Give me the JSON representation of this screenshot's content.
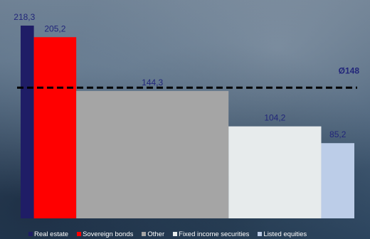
{
  "chart_data": {
    "type": "bar",
    "categories": [
      "Real estate",
      "Sovereign bonds",
      "Other",
      "Fixed income securities",
      "Listed equities"
    ],
    "values": [
      218.3,
      205.2,
      144.3,
      104.2,
      85.2
    ],
    "value_labels": [
      "218,3",
      "205,2",
      "144,3",
      "104,2",
      "85,2"
    ],
    "colors": [
      "#1f1d66",
      "#ff0000",
      "#a5a5a5",
      "#e7ebec",
      "#bccde8"
    ],
    "relative_widths": [
      1,
      3.2,
      11.5,
      7,
      2.5
    ],
    "average": {
      "value": 148,
      "label": "Ø148"
    },
    "ylim": [
      0,
      230
    ],
    "title": "",
    "xlabel": "",
    "ylabel": "",
    "grid": false,
    "legend": "bottom"
  }
}
